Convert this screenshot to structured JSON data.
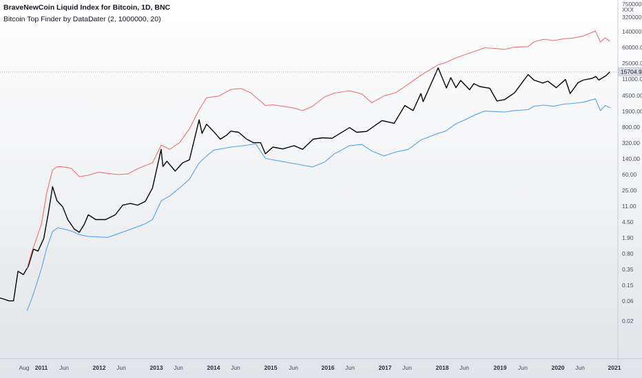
{
  "header": {
    "title": "BraveNewCoin Liquid Index for Bitcoin, 1D, BNC",
    "indicator": "Bitcoin Top Finder by DataDater (2, 1000000, 20)"
  },
  "chart_data": {
    "type": "line",
    "scale": "log",
    "y_axis_labels": [
      "750000.00",
      "XXX",
      "320000.00",
      "140000.00",
      "60000.00",
      "25000.00",
      "11000.00",
      "4500.00",
      "1900.00",
      "800.00",
      "320.00",
      "140.00",
      "60.00",
      "25.00",
      "11.00",
      "4.50",
      "1.90",
      "0.80",
      "0.35",
      "0.15",
      "0.06",
      "0.02"
    ],
    "x_axis_labels": [
      "Aug",
      "2011",
      "Jun",
      "2012",
      "Jun",
      "2013",
      "Jun",
      "2014",
      "Jun",
      "2015",
      "Jun",
      "2016",
      "Jun",
      "2017",
      "Jun",
      "2018",
      "Jun",
      "2019",
      "Jun",
      "2020",
      "Jun",
      "2021"
    ],
    "last_price": "15704.97",
    "xlim": [
      "2010-07-18",
      "2021-01-01"
    ],
    "series": [
      {
        "color": "#000000",
        "points": [
          [
            "2010-07-18",
            0.07
          ],
          [
            "2010-08-15",
            0.065
          ],
          [
            "2010-09-10",
            0.06
          ],
          [
            "2010-10-10",
            0.06
          ],
          [
            "2010-11-06",
            0.3
          ],
          [
            "2010-12-10",
            0.25
          ],
          [
            "2011-01-10",
            0.4
          ],
          [
            "2011-02-10",
            1.0
          ],
          [
            "2011-03-10",
            0.9
          ],
          [
            "2011-04-15",
            1.8
          ],
          [
            "2011-05-15",
            8.0
          ],
          [
            "2011-06-08",
            30.0
          ],
          [
            "2011-07-05",
            14.0
          ],
          [
            "2011-08-10",
            10.0
          ],
          [
            "2011-09-10",
            5.0
          ],
          [
            "2011-10-20",
            3.0
          ],
          [
            "2011-11-20",
            2.5
          ],
          [
            "2011-12-20",
            3.8
          ],
          [
            "2012-01-15",
            6.5
          ],
          [
            "2012-03-01",
            5.0
          ],
          [
            "2012-05-01",
            5.0
          ],
          [
            "2012-06-30",
            6.5
          ],
          [
            "2012-08-15",
            11.0
          ],
          [
            "2012-10-01",
            12.0
          ],
          [
            "2012-11-15",
            11.0
          ],
          [
            "2013-01-01",
            13.5
          ],
          [
            "2013-02-15",
            28.0
          ],
          [
            "2013-04-09",
            230.0
          ],
          [
            "2013-04-20",
            90.0
          ],
          [
            "2013-05-15",
            120.0
          ],
          [
            "2013-07-05",
            70.0
          ],
          [
            "2013-08-20",
            110.0
          ],
          [
            "2013-10-01",
            130.0
          ],
          [
            "2013-11-30",
            1150.0
          ],
          [
            "2013-12-18",
            550.0
          ],
          [
            "2014-01-15",
            900.0
          ],
          [
            "2014-03-01",
            600.0
          ],
          [
            "2014-04-10",
            400.0
          ],
          [
            "2014-05-20",
            500.0
          ],
          [
            "2014-06-15",
            620.0
          ],
          [
            "2014-08-01",
            580.0
          ],
          [
            "2014-09-20",
            400.0
          ],
          [
            "2014-11-01",
            330.0
          ],
          [
            "2014-12-15",
            330.0
          ],
          [
            "2015-01-14",
            180.0
          ],
          [
            "2015-03-01",
            260.0
          ],
          [
            "2015-05-01",
            235.0
          ],
          [
            "2015-07-10",
            280.0
          ],
          [
            "2015-09-01",
            230.0
          ],
          [
            "2015-11-05",
            400.0
          ],
          [
            "2016-01-01",
            430.0
          ],
          [
            "2016-03-01",
            420.0
          ],
          [
            "2016-06-17",
            750.0
          ],
          [
            "2016-08-01",
            580.0
          ],
          [
            "2016-10-01",
            610.0
          ],
          [
            "2017-01-04",
            1100.0
          ],
          [
            "2017-03-20",
            950.0
          ],
          [
            "2017-05-25",
            2500.0
          ],
          [
            "2017-07-15",
            1900.0
          ],
          [
            "2017-09-01",
            4800.0
          ],
          [
            "2017-09-15",
            3100.0
          ],
          [
            "2017-12-17",
            19500.0
          ],
          [
            "2018-02-06",
            6500.0
          ],
          [
            "2018-03-05",
            11400.0
          ],
          [
            "2018-04-06",
            6600.0
          ],
          [
            "2018-05-05",
            9800.0
          ],
          [
            "2018-06-29",
            5900.0
          ],
          [
            "2018-07-25",
            8200.0
          ],
          [
            "2018-09-01",
            7000.0
          ],
          [
            "2018-11-01",
            6400.0
          ],
          [
            "2018-12-15",
            3200.0
          ],
          [
            "2019-02-01",
            3450.0
          ],
          [
            "2019-04-03",
            5000.0
          ],
          [
            "2019-06-26",
            13500.0
          ],
          [
            "2019-08-01",
            10000.0
          ],
          [
            "2019-09-24",
            8500.0
          ],
          [
            "2019-10-26",
            9400.0
          ],
          [
            "2019-12-17",
            6600.0
          ],
          [
            "2020-02-12",
            10300.0
          ],
          [
            "2020-03-12",
            4800.0
          ],
          [
            "2020-04-30",
            8700.0
          ],
          [
            "2020-06-01",
            10000.0
          ],
          [
            "2020-07-27",
            11000.0
          ],
          [
            "2020-08-17",
            12200.0
          ],
          [
            "2020-09-05",
            10000.0
          ],
          [
            "2020-10-21",
            12800.0
          ],
          [
            "2020-11-13",
            15704.97
          ]
        ]
      },
      {
        "color": "#f07070",
        "points": [
          [
            "2011-01-01",
            0.35
          ],
          [
            "2011-02-01",
            0.9
          ],
          [
            "2011-03-01",
            1.8
          ],
          [
            "2011-04-01",
            4.0
          ],
          [
            "2011-05-01",
            20.0
          ],
          [
            "2011-06-08",
            75.0
          ],
          [
            "2011-07-10",
            90.0
          ],
          [
            "2011-08-15",
            88.0
          ],
          [
            "2011-10-01",
            82.0
          ],
          [
            "2011-11-20",
            52.0
          ],
          [
            "2012-01-15",
            56.0
          ],
          [
            "2012-03-15",
            66.0
          ],
          [
            "2012-05-15",
            62.0
          ],
          [
            "2012-07-15",
            58.0
          ],
          [
            "2012-09-15",
            60.0
          ],
          [
            "2012-11-15",
            80.0
          ],
          [
            "2013-01-01",
            95.0
          ],
          [
            "2013-02-15",
            110.0
          ],
          [
            "2013-04-10",
            290.0
          ],
          [
            "2013-06-01",
            230.0
          ],
          [
            "2013-08-01",
            330.0
          ],
          [
            "2013-10-01",
            700.0
          ],
          [
            "2013-11-30",
            2000.0
          ],
          [
            "2014-01-15",
            3800.0
          ],
          [
            "2014-04-01",
            4200.0
          ],
          [
            "2014-06-15",
            6000.0
          ],
          [
            "2014-08-15",
            6300.0
          ],
          [
            "2014-10-15",
            5000.0
          ],
          [
            "2015-01-14",
            2500.0
          ],
          [
            "2015-03-01",
            2600.0
          ],
          [
            "2015-05-01",
            2400.0
          ],
          [
            "2015-07-01",
            2200.0
          ],
          [
            "2015-09-01",
            1900.0
          ],
          [
            "2015-11-01",
            2400.0
          ],
          [
            "2016-01-15",
            4000.0
          ],
          [
            "2016-03-15",
            4900.0
          ],
          [
            "2016-06-17",
            5600.0
          ],
          [
            "2016-09-01",
            4700.0
          ],
          [
            "2016-11-01",
            2900.0
          ],
          [
            "2017-01-15",
            4200.0
          ],
          [
            "2017-04-01",
            5100.0
          ],
          [
            "2017-06-15",
            8000.0
          ],
          [
            "2017-09-01",
            13000.0
          ],
          [
            "2017-12-17",
            23000.0
          ],
          [
            "2018-02-01",
            26000.0
          ],
          [
            "2018-04-01",
            33000.0
          ],
          [
            "2018-06-01",
            40000.0
          ],
          [
            "2018-08-01",
            48000.0
          ],
          [
            "2018-10-01",
            58000.0
          ],
          [
            "2018-12-01",
            56000.0
          ],
          [
            "2019-02-01",
            53000.0
          ],
          [
            "2019-04-01",
            60000.0
          ],
          [
            "2019-06-26",
            62000.0
          ],
          [
            "2019-08-01",
            80000.0
          ],
          [
            "2019-10-01",
            92000.0
          ],
          [
            "2019-12-01",
            86000.0
          ],
          [
            "2020-02-01",
            95000.0
          ],
          [
            "2020-04-01",
            99000.0
          ],
          [
            "2020-06-01",
            110000.0
          ],
          [
            "2020-08-15",
            145000.0
          ],
          [
            "2020-09-15",
            80000.0
          ],
          [
            "2020-10-15",
            100000.0
          ],
          [
            "2020-11-13",
            82000.0
          ]
        ]
      },
      {
        "color": "#4da3f0",
        "points": [
          [
            "2011-01-01",
            0.035
          ],
          [
            "2011-02-01",
            0.07
          ],
          [
            "2011-03-01",
            0.15
          ],
          [
            "2011-04-01",
            0.35
          ],
          [
            "2011-05-01",
            1.0
          ],
          [
            "2011-06-08",
            2.6
          ],
          [
            "2011-07-10",
            3.2
          ],
          [
            "2011-08-15",
            3.0
          ],
          [
            "2011-10-01",
            2.7
          ],
          [
            "2011-11-20",
            2.2
          ],
          [
            "2012-01-15",
            2.0
          ],
          [
            "2012-03-15",
            1.95
          ],
          [
            "2012-05-15",
            1.9
          ],
          [
            "2012-07-15",
            2.3
          ],
          [
            "2012-09-15",
            2.8
          ],
          [
            "2012-11-15",
            3.4
          ],
          [
            "2013-01-01",
            4.0
          ],
          [
            "2013-02-15",
            5.0
          ],
          [
            "2013-04-10",
            14.0
          ],
          [
            "2013-06-01",
            18.0
          ],
          [
            "2013-08-01",
            28.0
          ],
          [
            "2013-10-01",
            45.0
          ],
          [
            "2013-11-30",
            110.0
          ],
          [
            "2014-01-15",
            160.0
          ],
          [
            "2014-03-01",
            220.0
          ],
          [
            "2014-06-15",
            260.0
          ],
          [
            "2014-09-01",
            280.0
          ],
          [
            "2014-11-15",
            310.0
          ],
          [
            "2015-01-14",
            140.0
          ],
          [
            "2015-03-01",
            130.0
          ],
          [
            "2015-05-01",
            118.0
          ],
          [
            "2015-08-01",
            102.0
          ],
          [
            "2015-11-01",
            88.0
          ],
          [
            "2016-01-15",
            115.0
          ],
          [
            "2016-03-15",
            180.0
          ],
          [
            "2016-06-17",
            280.0
          ],
          [
            "2016-09-01",
            300.0
          ],
          [
            "2016-11-01",
            210.0
          ],
          [
            "2017-01-15",
            160.0
          ],
          [
            "2017-04-01",
            200.0
          ],
          [
            "2017-06-15",
            230.0
          ],
          [
            "2017-09-01",
            380.0
          ],
          [
            "2017-12-17",
            550.0
          ],
          [
            "2018-02-01",
            620.0
          ],
          [
            "2018-04-01",
            900.0
          ],
          [
            "2018-06-01",
            1150.0
          ],
          [
            "2018-08-01",
            1500.0
          ],
          [
            "2018-10-01",
            1850.0
          ],
          [
            "2018-12-01",
            1800.0
          ],
          [
            "2019-02-01",
            1750.0
          ],
          [
            "2019-04-01",
            1900.0
          ],
          [
            "2019-06-26",
            2000.0
          ],
          [
            "2019-08-01",
            2400.0
          ],
          [
            "2019-10-01",
            2550.0
          ],
          [
            "2019-12-01",
            2400.0
          ],
          [
            "2020-02-01",
            2700.0
          ],
          [
            "2020-04-01",
            2800.0
          ],
          [
            "2020-06-01",
            3000.0
          ],
          [
            "2020-08-15",
            3600.0
          ],
          [
            "2020-09-15",
            1900.0
          ],
          [
            "2020-10-15",
            2500.0
          ],
          [
            "2020-11-13",
            2200.0
          ]
        ]
      }
    ]
  }
}
